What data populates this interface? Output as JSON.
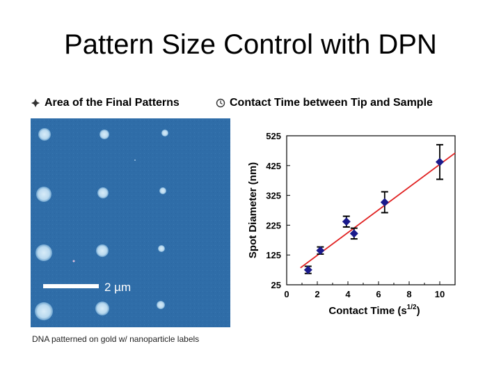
{
  "slide": {
    "title": "Pattern Size Control with DPN"
  },
  "bullets": {
    "left_label": "Area of the Final Patterns",
    "right_label": "Contact Time between Tip and Sample",
    "left_icon": "diamond-bullet-icon",
    "right_icon": "clock-bullet-icon"
  },
  "afm_image": {
    "scale_label": "2 µm",
    "caption": "DNA patterned on gold w/ nanoparticle labels",
    "background_color": "#2f6da8",
    "dot_color": "#cfe6f5"
  },
  "chart_data": {
    "type": "scatter",
    "xlabel": "Contact Time (s",
    "xlabel_sup": "1/2",
    "xlabel_end": ")",
    "ylabel": "Spot Diameter (nm)",
    "xlim": [
      0,
      11
    ],
    "ylim": [
      25,
      525
    ],
    "xticks": [
      "0",
      "2",
      "4",
      "6",
      "8",
      "10"
    ],
    "yticks": [
      "25",
      "125",
      "225",
      "325",
      "425",
      "525"
    ],
    "grid": false,
    "marker_color": "#1a1a8c",
    "fit_color": "#e02020",
    "points": [
      {
        "x": 1.4,
        "y": 75,
        "err": 12
      },
      {
        "x": 2.2,
        "y": 140,
        "err": 12
      },
      {
        "x": 3.9,
        "y": 237,
        "err": 18
      },
      {
        "x": 4.4,
        "y": 197,
        "err": 18
      },
      {
        "x": 6.4,
        "y": 302,
        "err": 35
      },
      {
        "x": 10.0,
        "y": 437,
        "err": 58
      }
    ],
    "fit": {
      "x": [
        0.9,
        11.0
      ],
      "y": [
        82,
        467
      ]
    }
  }
}
